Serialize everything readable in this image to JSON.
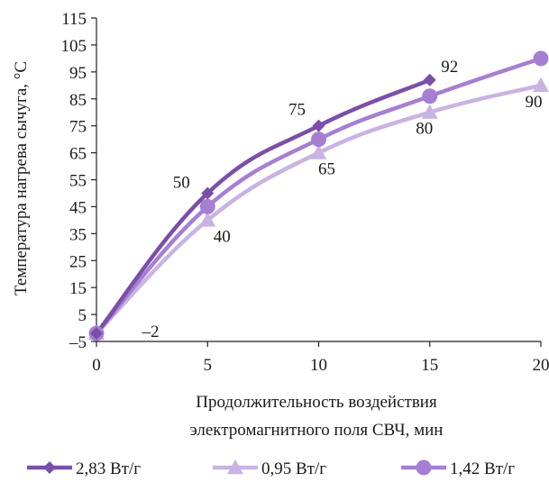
{
  "chart_data": {
    "type": "line",
    "title": "",
    "xlabel_lines": [
      "Продолжительность воздействия",
      "электромагнитного поля СВЧ, мин"
    ],
    "ylabel": "Температура нагрева сычуга, °С",
    "xlim": [
      0,
      20
    ],
    "ylim": [
      -5,
      115
    ],
    "x_ticks": [
      0,
      5,
      10,
      15,
      20
    ],
    "y_ticks": [
      -5,
      5,
      15,
      25,
      35,
      45,
      55,
      65,
      75,
      85,
      95,
      105,
      115
    ],
    "x_tick_labels": [
      "0",
      "5",
      "10",
      "15",
      "20"
    ],
    "y_tick_labels": [
      "–5",
      "5",
      "15",
      "25",
      "35",
      "45",
      "55",
      "65",
      "75",
      "85",
      "95",
      "105",
      "115"
    ],
    "grid": false,
    "legend_position": "bottom",
    "series": [
      {
        "name": "2,83 Вт/г",
        "color": "#7b4fa8",
        "marker": "diamond",
        "x": [
          0,
          5,
          10,
          15
        ],
        "values": [
          -2,
          50,
          75,
          92
        ],
        "labels": [
          "–2",
          "50",
          "75",
          "92"
        ]
      },
      {
        "name": "0,95 Вт/г",
        "color": "#c9b3e3",
        "marker": "triangle",
        "x": [
          0,
          5,
          10,
          15,
          20
        ],
        "values": [
          -2,
          40,
          65,
          80,
          90
        ],
        "labels": [
          "",
          "40",
          "65",
          "80",
          "90"
        ]
      },
      {
        "name": "1,42 Вт/г",
        "color": "#a67fd3",
        "marker": "circle",
        "x": [
          0,
          5,
          10,
          15,
          20
        ],
        "values": [
          -2,
          45,
          70,
          86,
          100
        ],
        "labels": []
      }
    ]
  }
}
